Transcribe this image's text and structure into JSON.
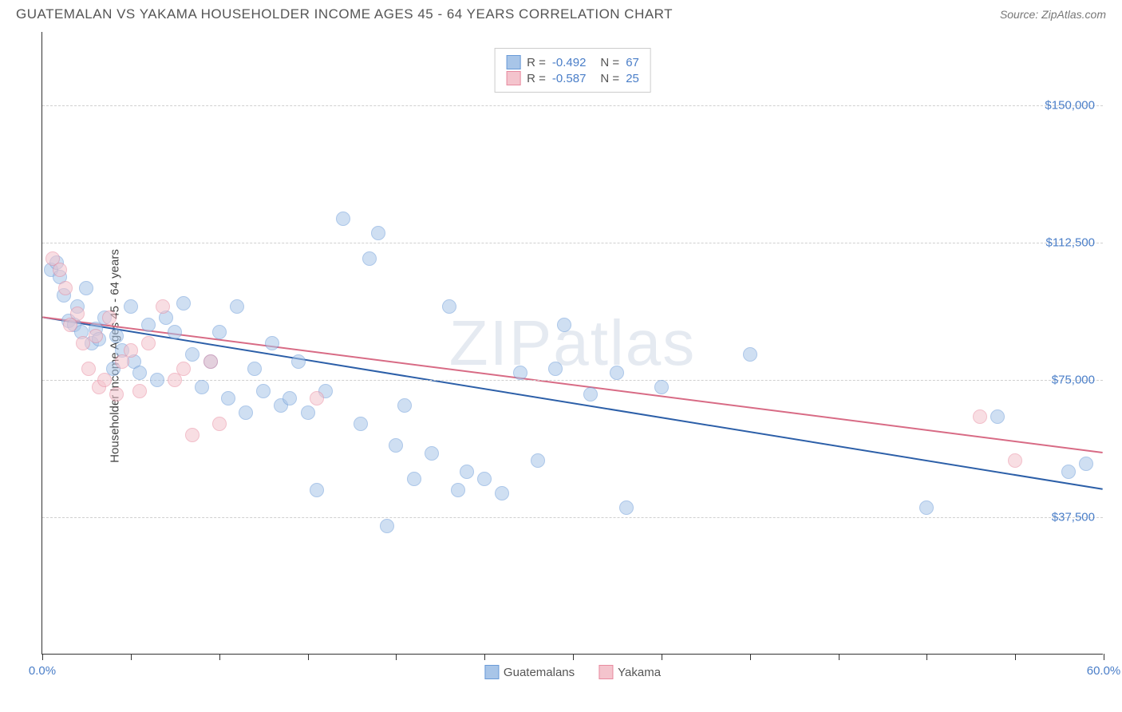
{
  "chart": {
    "type": "scatter",
    "title": "GUATEMALAN VS YAKAMA HOUSEHOLDER INCOME AGES 45 - 64 YEARS CORRELATION CHART",
    "source": "Source: ZipAtlas.com",
    "watermark": "ZIPatlas",
    "ylabel": "Householder Income Ages 45 - 64 years",
    "title_fontsize": 17,
    "label_fontsize": 15,
    "background_color": "#ffffff",
    "grid_color": "#d0d0d0",
    "axis_color": "#333333",
    "tick_label_color": "#4a7ec8",
    "xlim": [
      0,
      60
    ],
    "ylim": [
      0,
      170000
    ],
    "xtick_step": 5,
    "xtick_labels": {
      "0": "0.0%",
      "60": "60.0%"
    },
    "ytick_step": 37500,
    "ytick_labels": {
      "37500": "$37,500",
      "75000": "$75,000",
      "112500": "$112,500",
      "150000": "$150,000"
    },
    "marker_radius": 9,
    "marker_opacity": 0.55,
    "trend_line_width": 2,
    "series": [
      {
        "name": "Guatemalans",
        "color_fill": "#a8c5e8",
        "color_stroke": "#6a9bd8",
        "line_color": "#2c5fa8",
        "R": "-0.492",
        "N": "67",
        "trend": {
          "x1": 0,
          "y1": 92000,
          "x2": 60,
          "y2": 45000
        },
        "points": [
          [
            0.5,
            105000
          ],
          [
            0.8,
            107000
          ],
          [
            1.0,
            103000
          ],
          [
            1.2,
            98000
          ],
          [
            1.5,
            91000
          ],
          [
            1.8,
            90000
          ],
          [
            2.0,
            95000
          ],
          [
            2.2,
            88000
          ],
          [
            2.5,
            100000
          ],
          [
            2.8,
            85000
          ],
          [
            3.0,
            89000
          ],
          [
            3.2,
            86000
          ],
          [
            3.5,
            92000
          ],
          [
            4.0,
            78000
          ],
          [
            4.2,
            87000
          ],
          [
            4.5,
            83000
          ],
          [
            5.0,
            95000
          ],
          [
            5.2,
            80000
          ],
          [
            5.5,
            77000
          ],
          [
            6.0,
            90000
          ],
          [
            6.5,
            75000
          ],
          [
            7.0,
            92000
          ],
          [
            7.5,
            88000
          ],
          [
            8.0,
            96000
          ],
          [
            8.5,
            82000
          ],
          [
            9.0,
            73000
          ],
          [
            9.5,
            80000
          ],
          [
            10.0,
            88000
          ],
          [
            10.5,
            70000
          ],
          [
            11.0,
            95000
          ],
          [
            11.5,
            66000
          ],
          [
            12.0,
            78000
          ],
          [
            12.5,
            72000
          ],
          [
            13.0,
            85000
          ],
          [
            13.5,
            68000
          ],
          [
            14.0,
            70000
          ],
          [
            14.5,
            80000
          ],
          [
            15.0,
            66000
          ],
          [
            15.5,
            45000
          ],
          [
            16.0,
            72000
          ],
          [
            17.0,
            119000
          ],
          [
            18.0,
            63000
          ],
          [
            18.5,
            108000
          ],
          [
            19.0,
            115000
          ],
          [
            19.5,
            35000
          ],
          [
            20.0,
            57000
          ],
          [
            20.5,
            68000
          ],
          [
            21.0,
            48000
          ],
          [
            22.0,
            55000
          ],
          [
            23.0,
            95000
          ],
          [
            23.5,
            45000
          ],
          [
            24.0,
            50000
          ],
          [
            25.0,
            48000
          ],
          [
            26.0,
            44000
          ],
          [
            27.0,
            77000
          ],
          [
            28.0,
            53000
          ],
          [
            29.0,
            78000
          ],
          [
            29.5,
            90000
          ],
          [
            31.0,
            71000
          ],
          [
            32.5,
            77000
          ],
          [
            33.0,
            40000
          ],
          [
            35.0,
            73000
          ],
          [
            40.0,
            82000
          ],
          [
            50.0,
            40000
          ],
          [
            54.0,
            65000
          ],
          [
            58.0,
            50000
          ],
          [
            59.0,
            52000
          ]
        ]
      },
      {
        "name": "Yakama",
        "color_fill": "#f4c4cd",
        "color_stroke": "#e88ba0",
        "line_color": "#d86b85",
        "R": "-0.587",
        "N": "25",
        "trend": {
          "x1": 0,
          "y1": 92000,
          "x2": 60,
          "y2": 55000
        },
        "points": [
          [
            0.6,
            108000
          ],
          [
            1.0,
            105000
          ],
          [
            1.3,
            100000
          ],
          [
            1.6,
            90000
          ],
          [
            2.0,
            93000
          ],
          [
            2.3,
            85000
          ],
          [
            2.6,
            78000
          ],
          [
            3.0,
            87000
          ],
          [
            3.2,
            73000
          ],
          [
            3.5,
            75000
          ],
          [
            3.8,
            92000
          ],
          [
            4.2,
            71000
          ],
          [
            4.5,
            80000
          ],
          [
            5.0,
            83000
          ],
          [
            5.5,
            72000
          ],
          [
            6.0,
            85000
          ],
          [
            6.8,
            95000
          ],
          [
            7.5,
            75000
          ],
          [
            8.0,
            78000
          ],
          [
            8.5,
            60000
          ],
          [
            9.5,
            80000
          ],
          [
            10.0,
            63000
          ],
          [
            15.5,
            70000
          ],
          [
            53.0,
            65000
          ],
          [
            55.0,
            53000
          ]
        ]
      }
    ]
  }
}
